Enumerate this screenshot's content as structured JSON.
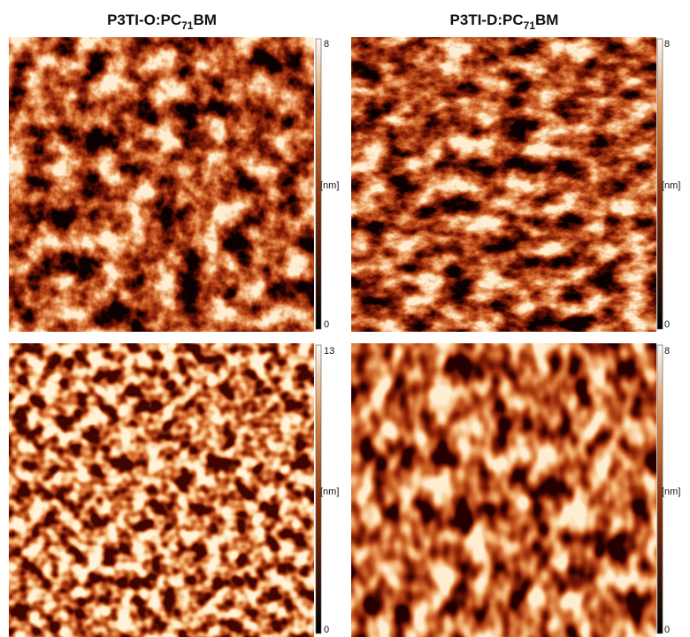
{
  "panels": [
    {
      "title": {
        "base": "P3TI-O:PC",
        "sub": "71",
        "suffix": "BM"
      },
      "colorbar": {
        "max": 8,
        "min": 0,
        "unit": "[nm]"
      }
    },
    {
      "title": {
        "base": "P3TI-D:PC",
        "sub": "71",
        "suffix": "BM"
      },
      "colorbar": {
        "max": 8,
        "min": 0,
        "unit": "[nm]"
      }
    },
    {
      "colorbar": {
        "max": 13,
        "min": 0,
        "unit": "[nm]"
      }
    },
    {
      "colorbar": {
        "max": 8,
        "min": 0,
        "unit": "[nm]"
      }
    }
  ]
}
